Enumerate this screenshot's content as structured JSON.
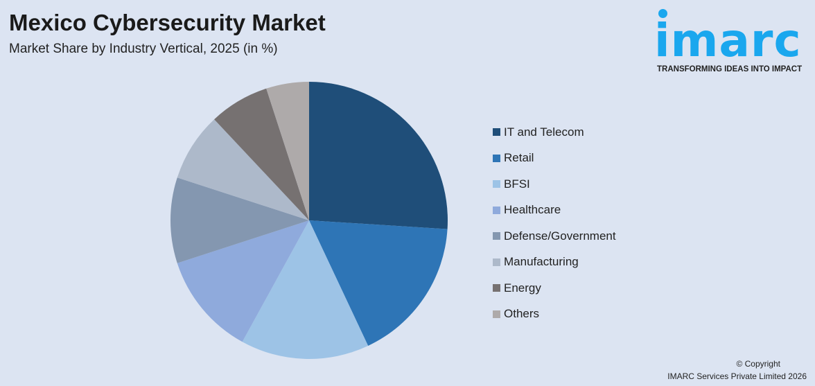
{
  "header": {
    "title": "Mexico Cybersecurity Market",
    "subtitle": "Market Share by Industry Vertical, 2025 (in %)"
  },
  "logo": {
    "text": "imarc",
    "tagline": "TRANSFORMING IDEAS INTO IMPACT",
    "color": "#1aa7ee"
  },
  "footer": {
    "copyright": "© Copyright",
    "company": "IMARC Services Private Limited 2026"
  },
  "chart_data": {
    "type": "pie",
    "title": "Mexico Cybersecurity Market",
    "subtitle": "Market Share by Industry Vertical, 2025 (in %)",
    "legend_placement": "right",
    "categories": [
      "IT and Telecom",
      "Retail",
      "BFSI",
      "Healthcare",
      "Defense/Government",
      "Manufacturing",
      "Energy",
      "Others"
    ],
    "values": [
      26,
      17,
      15,
      12,
      10,
      8,
      7,
      5
    ],
    "colors": [
      "#1f4e79",
      "#2e75b6",
      "#9dc3e6",
      "#8faadc",
      "#8497b0",
      "#adb9ca",
      "#767171",
      "#aeaaaa"
    ]
  }
}
